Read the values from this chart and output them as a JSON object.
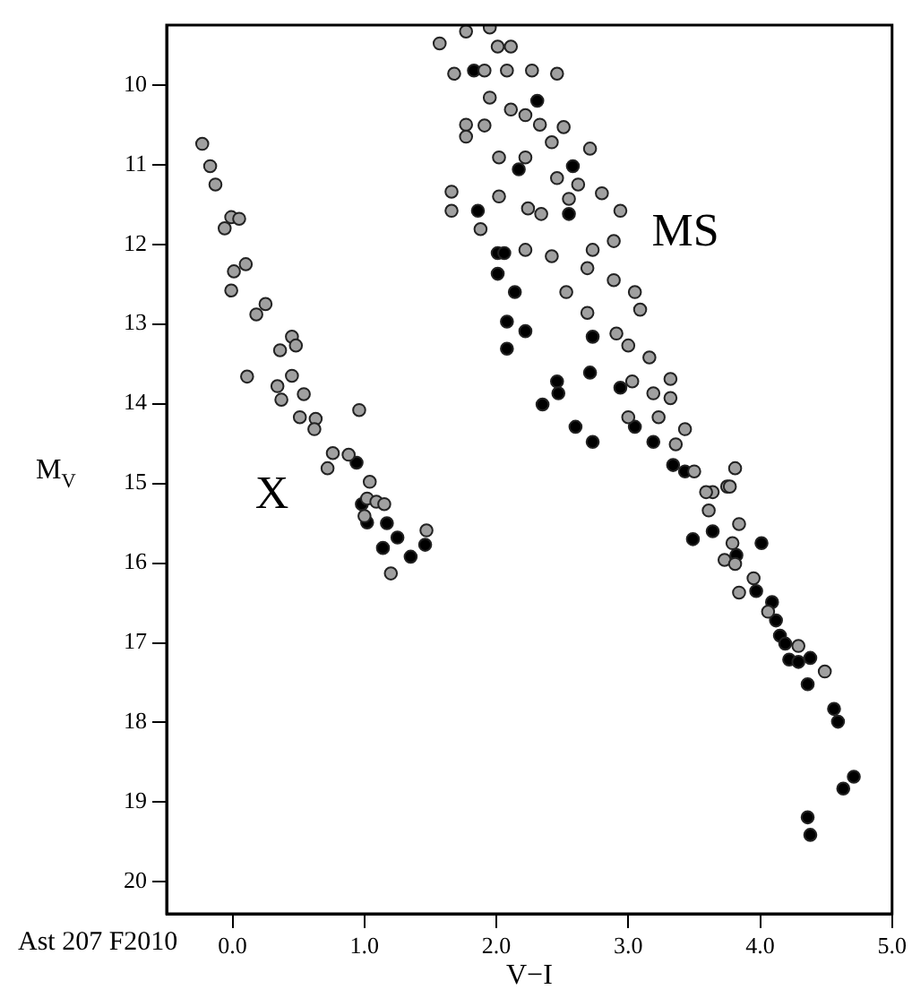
{
  "chart_data": {
    "type": "scatter",
    "xlabel": "V−I",
    "ylabel": "M$_{V}$",
    "xlim": [
      -0.5,
      5.0
    ],
    "ylim": [
      20.4,
      9.25
    ],
    "xticks": [
      {
        "value": 0,
        "label": "0.0"
      },
      {
        "value": 1,
        "label": "1.0"
      },
      {
        "value": 2,
        "label": "2.0"
      },
      {
        "value": 3,
        "label": "3.0"
      },
      {
        "value": 4,
        "label": "4.0"
      },
      {
        "value": 5,
        "label": "5.0"
      }
    ],
    "yticks": [
      10,
      11,
      12,
      13,
      14,
      15,
      16,
      17,
      18,
      19,
      20
    ],
    "grid": false,
    "legend": false,
    "marker": "circle",
    "series": [
      {
        "color": "#a0a0a0",
        "x": [
          -0.23,
          -0.17,
          -0.13,
          -0.06,
          -0.01,
          0.05,
          0.01,
          0.1,
          -0.01,
          0.18,
          0.25,
          0.11,
          0.36,
          0.45,
          0.48,
          0.45,
          0.34,
          0.37,
          0.54,
          0.51,
          0.63,
          0.62,
          0.96,
          0.72,
          0.76,
          0.88,
          1.04,
          1.02,
          1.09,
          1.0,
          1.15,
          1.2,
          1.47,
          1.57,
          1.77,
          1.95,
          1.68,
          1.77,
          1.77,
          1.91,
          1.95,
          2.08,
          2.01,
          2.11,
          2.27,
          2.46,
          2.11,
          2.22,
          1.91,
          2.02,
          2.02,
          1.66,
          1.66,
          1.88,
          2.22,
          2.33,
          2.42,
          2.51,
          2.71,
          2.24,
          2.34,
          2.22,
          2.42,
          2.46,
          2.55,
          2.62,
          2.8,
          2.94,
          2.53,
          2.69,
          2.73,
          2.89,
          2.69,
          2.89,
          3.05,
          3.09,
          2.91,
          3.0,
          3.16,
          3.32,
          3.32,
          3.03,
          3.0,
          3.19,
          3.23,
          3.36,
          3.43,
          3.5,
          3.81,
          3.75,
          3.64,
          3.59,
          3.61,
          3.77,
          3.84,
          3.73,
          3.81,
          3.84,
          3.95,
          4.06,
          4.29,
          4.49,
          3.79
        ],
        "values": [
          10.74,
          11.02,
          11.25,
          11.8,
          11.66,
          11.68,
          12.34,
          12.25,
          12.58,
          12.88,
          12.75,
          13.66,
          13.33,
          13.16,
          13.27,
          13.65,
          13.78,
          13.95,
          13.88,
          14.17,
          14.19,
          14.32,
          14.08,
          14.81,
          14.62,
          14.64,
          14.98,
          15.19,
          15.23,
          15.41,
          15.26,
          16.13,
          15.59,
          9.48,
          9.33,
          9.28,
          9.86,
          10.5,
          10.65,
          9.82,
          10.16,
          9.82,
          9.52,
          9.52,
          9.82,
          9.86,
          10.31,
          10.38,
          10.51,
          10.91,
          11.4,
          11.34,
          11.58,
          11.81,
          10.91,
          10.5,
          10.72,
          10.53,
          10.8,
          11.55,
          11.62,
          12.07,
          12.15,
          11.17,
          11.43,
          11.25,
          11.36,
          11.58,
          12.6,
          12.3,
          12.07,
          11.96,
          12.86,
          12.45,
          12.6,
          12.82,
          13.12,
          13.27,
          13.42,
          13.69,
          13.93,
          13.72,
          14.17,
          13.87,
          14.17,
          14.51,
          14.32,
          14.85,
          14.81,
          15.04,
          15.11,
          15.11,
          15.34,
          15.04,
          15.51,
          15.96,
          16.01,
          16.37,
          16.19,
          16.61,
          17.04,
          17.36,
          15.75
        ]
      },
      {
        "color": "#000000",
        "x": [
          0.94,
          0.98,
          1.02,
          1.17,
          1.25,
          1.14,
          1.35,
          1.46,
          1.83,
          1.86,
          2.01,
          2.06,
          2.01,
          2.14,
          2.08,
          2.22,
          2.08,
          2.35,
          2.46,
          2.47,
          2.6,
          2.73,
          2.31,
          2.58,
          2.55,
          2.17,
          2.73,
          2.71,
          2.94,
          3.05,
          3.19,
          3.34,
          3.43,
          3.49,
          3.64,
          3.82,
          4.01,
          3.97,
          4.09,
          4.12,
          4.15,
          4.19,
          4.22,
          4.29,
          4.38,
          4.36,
          4.56,
          4.59,
          4.63,
          4.71,
          4.36,
          4.38
        ],
        "values": [
          14.74,
          15.26,
          15.49,
          15.5,
          15.68,
          15.81,
          15.92,
          15.77,
          9.82,
          11.58,
          12.11,
          12.11,
          12.37,
          12.6,
          12.97,
          13.09,
          13.31,
          14.01,
          13.72,
          13.87,
          14.29,
          14.48,
          10.2,
          11.02,
          11.62,
          11.06,
          13.16,
          13.61,
          13.8,
          14.29,
          14.48,
          14.77,
          14.85,
          15.7,
          15.6,
          15.9,
          15.75,
          16.35,
          16.49,
          16.72,
          16.91,
          17.01,
          17.21,
          17.24,
          17.19,
          17.52,
          17.83,
          17.99,
          18.83,
          18.68,
          19.19,
          19.41
        ]
      }
    ],
    "annotations": [
      "X",
      "MS",
      "Ast 207 F2010"
    ]
  }
}
